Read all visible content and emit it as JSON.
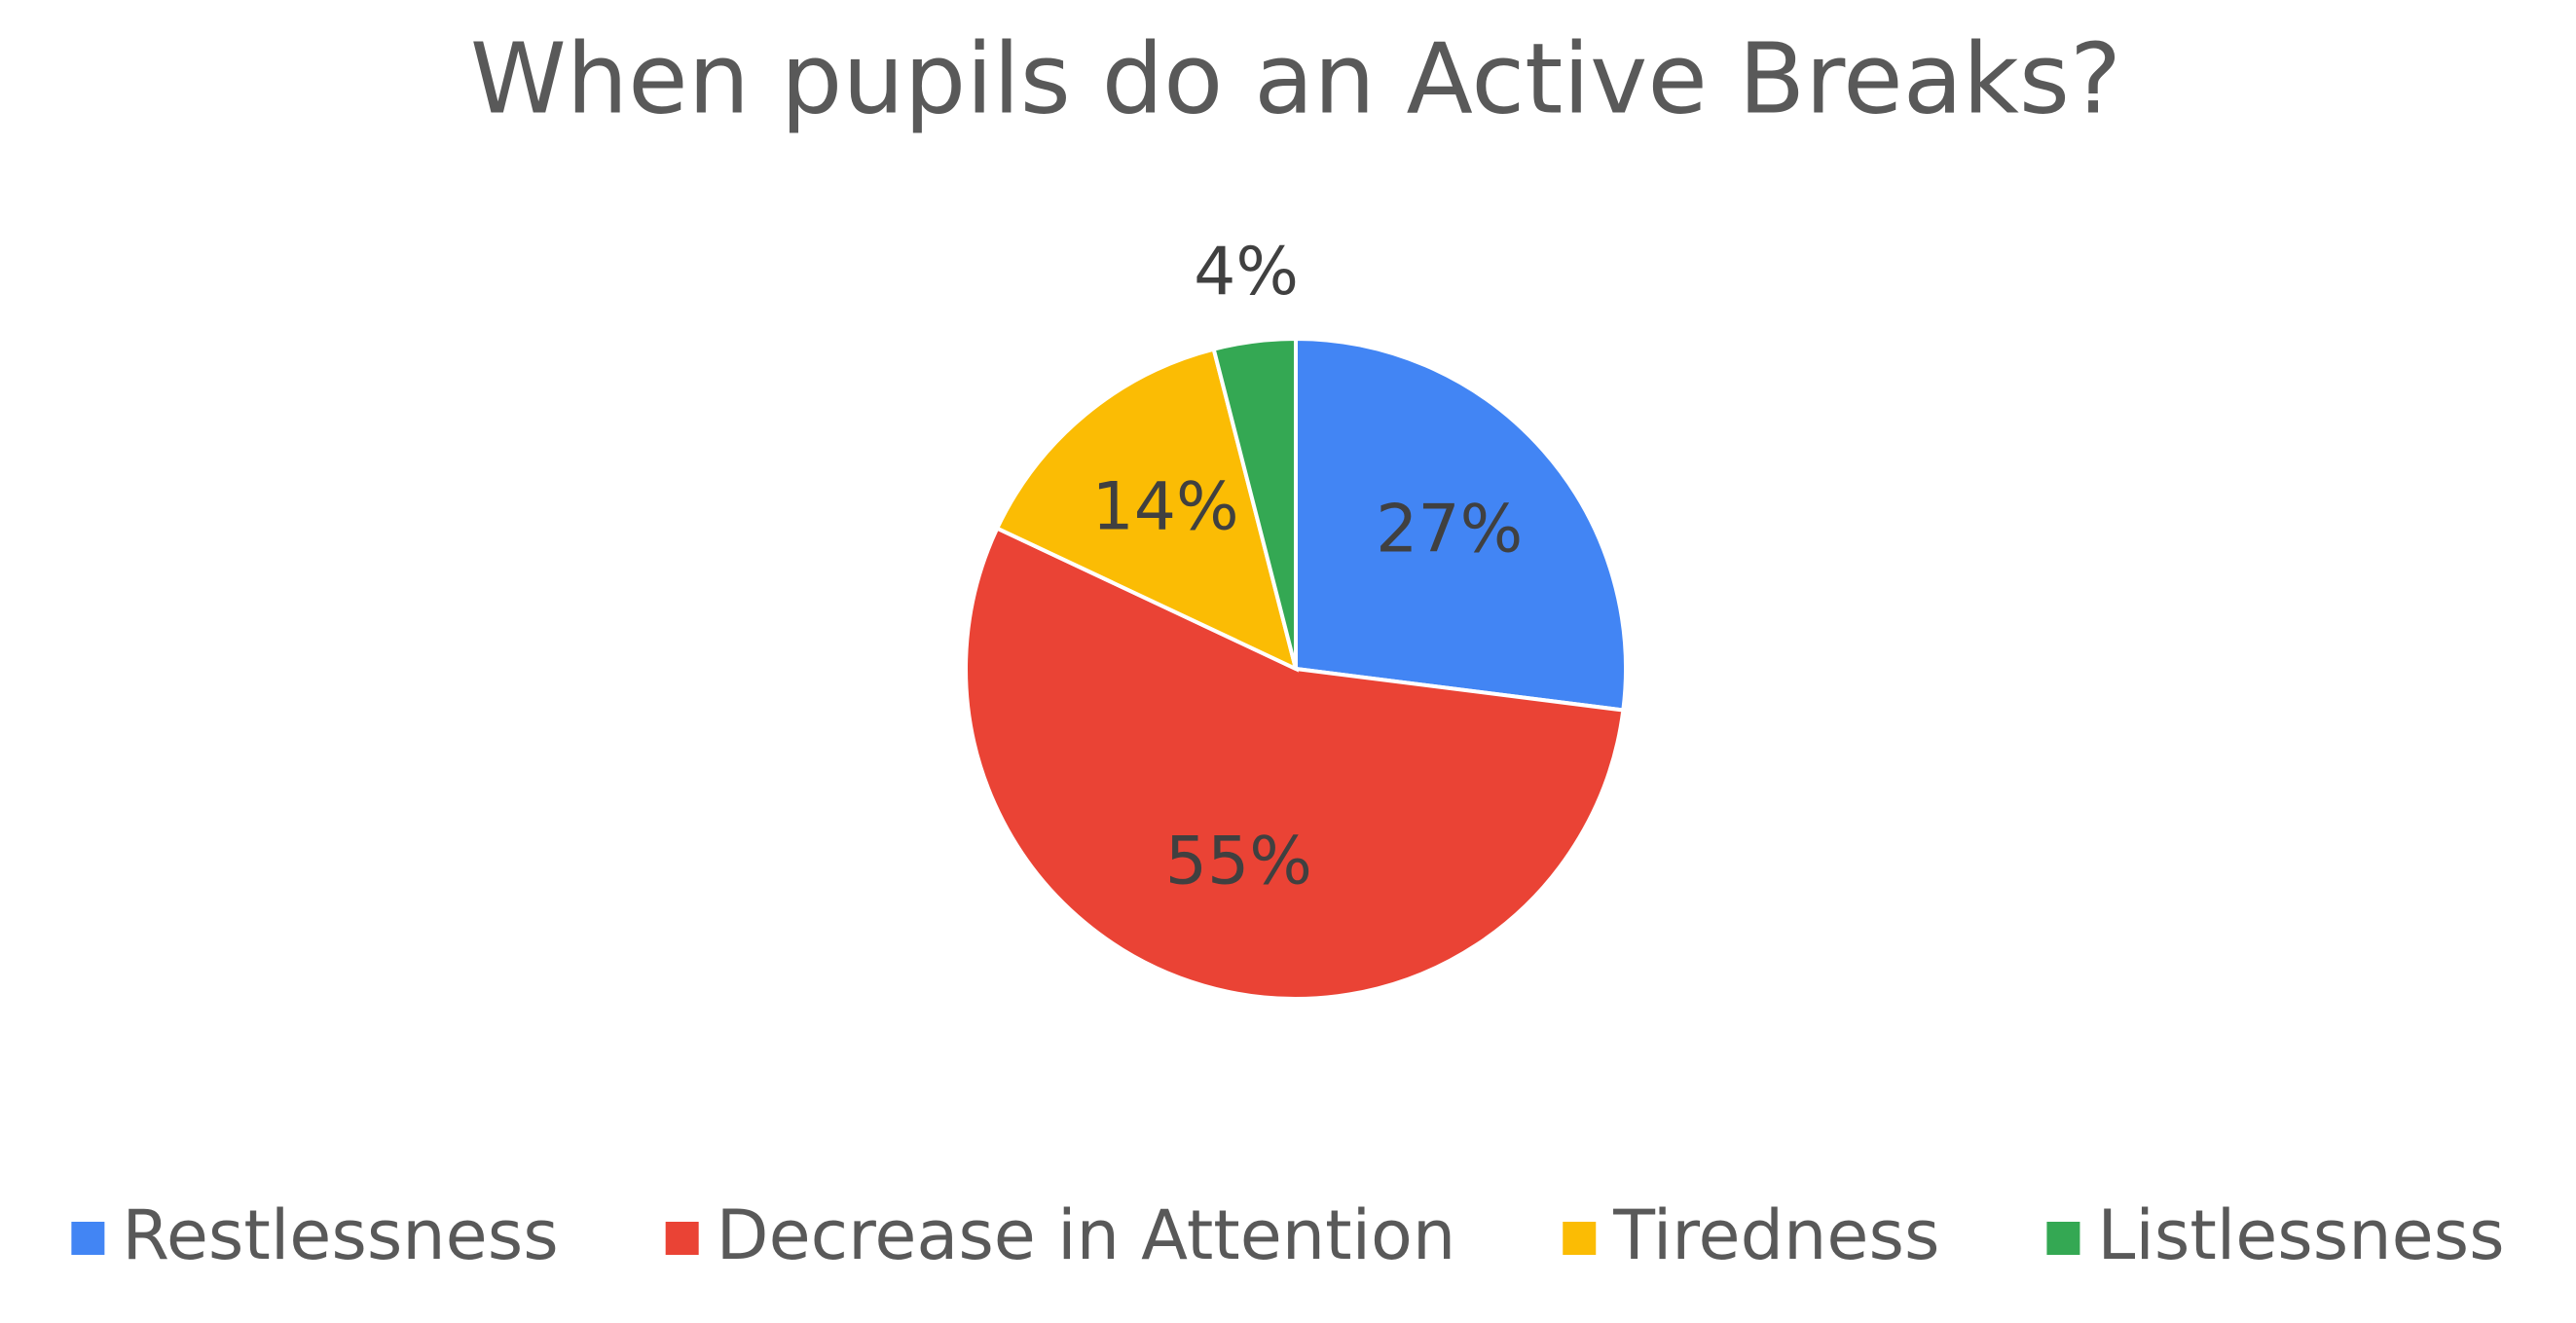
{
  "chart_data": {
    "type": "pie",
    "title": "When pupils do an Active Breaks?",
    "categories": [
      "Restlessness",
      "Decrease in Attention",
      "Tiredness",
      "Listlessness"
    ],
    "values": [
      27,
      55,
      14,
      4
    ],
    "value_labels": [
      "27%",
      "55%",
      "14%",
      "4%"
    ],
    "colors": [
      "#4285f4",
      "#ea4335",
      "#fbbc04",
      "#34a853"
    ],
    "legend": "bottom"
  }
}
